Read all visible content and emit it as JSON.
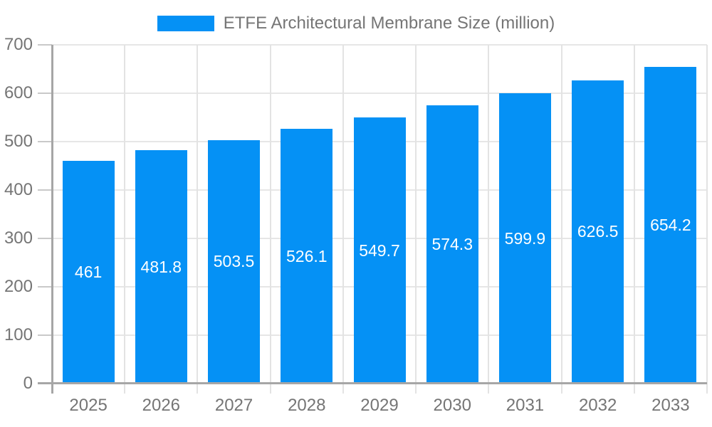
{
  "chart_data": {
    "type": "bar",
    "title": "ETFE Architectural Membrane Size (million)",
    "legend": [
      "ETFE Architectural Membrane Size (million)"
    ],
    "legend_position": "top",
    "categories": [
      "2025",
      "2026",
      "2027",
      "2028",
      "2029",
      "2030",
      "2031",
      "2032",
      "2033"
    ],
    "values": [
      461,
      481.8,
      503.5,
      526.1,
      549.7,
      574.3,
      599.9,
      626.5,
      654.2
    ],
    "value_labels": [
      "461",
      "481.8",
      "503.5",
      "526.1",
      "549.7",
      "574.3",
      "599.9",
      "626.5",
      "654.2"
    ],
    "xlabel": "",
    "ylabel": "",
    "ylim": [
      0,
      700
    ],
    "yticks": [
      0,
      100,
      200,
      300,
      400,
      500,
      600,
      700
    ],
    "grid": true,
    "colors": {
      "bar": "#0591F5",
      "value_label": "#FFFFFF",
      "axis_label": "#757575",
      "gridline": "#E6E6E6",
      "axis_line": "#A6A6A6"
    }
  }
}
